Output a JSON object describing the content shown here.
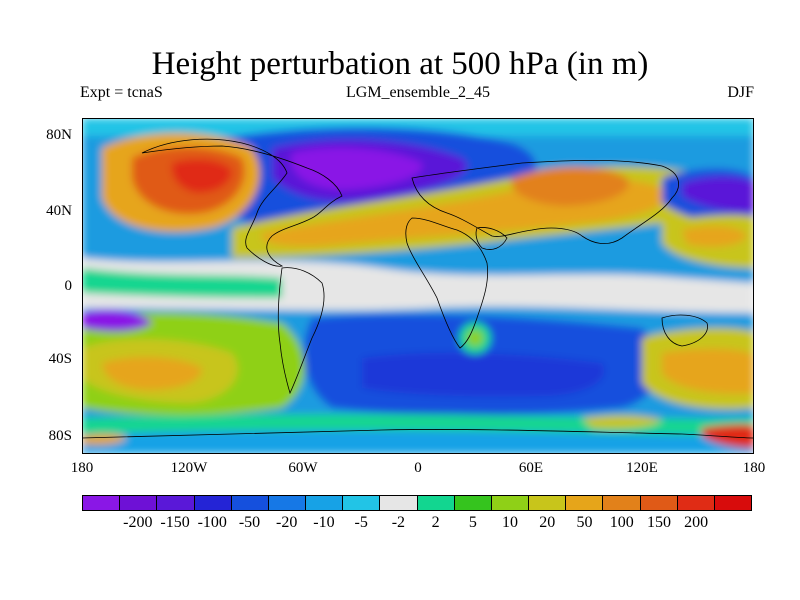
{
  "title": "Height perturbation at 500 hPa (in m)",
  "expt_label": "Expt = tcnaS",
  "ensemble_label": "LGM_ensemble_2_45",
  "season_label": "DJF",
  "lat_labels": [
    "80N",
    "40N",
    "0",
    "40S",
    "80S"
  ],
  "lon_labels": [
    "180",
    "120W",
    "60W",
    "0",
    "60E",
    "120E",
    "180"
  ],
  "colorbar": {
    "colors": [
      "#8a17e6",
      "#6e11d6",
      "#5a18d8",
      "#2424d6",
      "#1550dd",
      "#1678e6",
      "#17a2e6",
      "#22c4e6",
      "#e6e6e6",
      "#12d690",
      "#35c41e",
      "#8fd017",
      "#c8c51b",
      "#e6a51a",
      "#e2811a",
      "#e05a17",
      "#e02c15",
      "#d80c0c"
    ],
    "labels": [
      "-200",
      "-150",
      "-100",
      "-50",
      "-20",
      "-10",
      "-5",
      "-2",
      "2",
      "5",
      "10",
      "20",
      "50",
      "100",
      "150",
      "200"
    ]
  }
}
